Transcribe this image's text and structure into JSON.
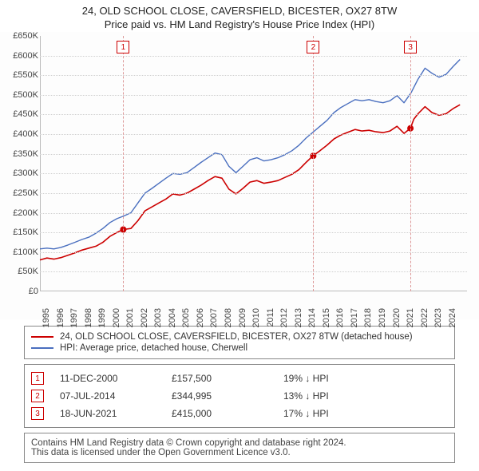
{
  "title_line1": "24, OLD SCHOOL CLOSE, CAVERSFIELD, BICESTER, OX27 8TW",
  "title_line2": "Price paid vs. HM Land Registry's House Price Index (HPI)",
  "chart": {
    "type": "line",
    "x_years": [
      1995,
      1996,
      1997,
      1998,
      1999,
      2000,
      2001,
      2002,
      2003,
      2004,
      2005,
      2006,
      2007,
      2008,
      2009,
      2010,
      2011,
      2012,
      2013,
      2014,
      2015,
      2016,
      2017,
      2018,
      2019,
      2020,
      2021,
      2022,
      2023,
      2024
    ],
    "x_min_year": 1995,
    "x_max_year": 2025.5,
    "ylim": [
      0,
      650000
    ],
    "ytick_step": 50000,
    "ytick_prefix": "£",
    "ytick_suffix": "K",
    "grid_color": "#cfcfcf",
    "background_color": "#fdfdfd",
    "series": [
      {
        "name": "property",
        "label": "24, OLD SCHOOL CLOSE, CAVERSFIELD, BICESTER, OX27 8TW (detached house)",
        "color": "#cc0000",
        "line_width": 1.6,
        "points": [
          [
            1995.0,
            80000
          ],
          [
            1995.5,
            85000
          ],
          [
            1996.0,
            82000
          ],
          [
            1996.5,
            86000
          ],
          [
            1997.0,
            92000
          ],
          [
            1997.5,
            98000
          ],
          [
            1998.0,
            105000
          ],
          [
            1998.5,
            110000
          ],
          [
            1999.0,
            115000
          ],
          [
            1999.5,
            125000
          ],
          [
            2000.0,
            140000
          ],
          [
            2000.5,
            150000
          ],
          [
            2000.95,
            157500
          ],
          [
            2001.5,
            160000
          ],
          [
            2002.0,
            180000
          ],
          [
            2002.5,
            205000
          ],
          [
            2003.0,
            215000
          ],
          [
            2003.5,
            225000
          ],
          [
            2004.0,
            235000
          ],
          [
            2004.5,
            248000
          ],
          [
            2005.0,
            245000
          ],
          [
            2005.5,
            250000
          ],
          [
            2006.0,
            260000
          ],
          [
            2006.5,
            270000
          ],
          [
            2007.0,
            282000
          ],
          [
            2007.5,
            292000
          ],
          [
            2008.0,
            288000
          ],
          [
            2008.5,
            260000
          ],
          [
            2009.0,
            248000
          ],
          [
            2009.5,
            262000
          ],
          [
            2010.0,
            278000
          ],
          [
            2010.5,
            282000
          ],
          [
            2011.0,
            275000
          ],
          [
            2011.5,
            278000
          ],
          [
            2012.0,
            282000
          ],
          [
            2012.5,
            290000
          ],
          [
            2013.0,
            298000
          ],
          [
            2013.5,
            310000
          ],
          [
            2014.0,
            328000
          ],
          [
            2014.5,
            344995
          ],
          [
            2015.0,
            358000
          ],
          [
            2015.5,
            372000
          ],
          [
            2016.0,
            388000
          ],
          [
            2016.5,
            398000
          ],
          [
            2017.0,
            405000
          ],
          [
            2017.5,
            412000
          ],
          [
            2018.0,
            408000
          ],
          [
            2018.5,
            410000
          ],
          [
            2019.0,
            406000
          ],
          [
            2019.5,
            404000
          ],
          [
            2020.0,
            408000
          ],
          [
            2020.5,
            420000
          ],
          [
            2021.0,
            402000
          ],
          [
            2021.46,
            415000
          ],
          [
            2021.7,
            438000
          ],
          [
            2022.0,
            452000
          ],
          [
            2022.5,
            470000
          ],
          [
            2023.0,
            455000
          ],
          [
            2023.5,
            448000
          ],
          [
            2024.0,
            452000
          ],
          [
            2024.5,
            465000
          ],
          [
            2025.0,
            475000
          ]
        ]
      },
      {
        "name": "hpi",
        "label": "HPI: Average price, detached house, Cherwell",
        "color": "#4a6fbf",
        "line_width": 1.4,
        "points": [
          [
            1995.0,
            108000
          ],
          [
            1995.5,
            110000
          ],
          [
            1996.0,
            108000
          ],
          [
            1996.5,
            112000
          ],
          [
            1997.0,
            118000
          ],
          [
            1997.5,
            125000
          ],
          [
            1998.0,
            132000
          ],
          [
            1998.5,
            138000
          ],
          [
            1999.0,
            148000
          ],
          [
            1999.5,
            160000
          ],
          [
            2000.0,
            175000
          ],
          [
            2000.5,
            185000
          ],
          [
            2001.0,
            192000
          ],
          [
            2001.5,
            200000
          ],
          [
            2002.0,
            225000
          ],
          [
            2002.5,
            250000
          ],
          [
            2003.0,
            262000
          ],
          [
            2003.5,
            275000
          ],
          [
            2004.0,
            288000
          ],
          [
            2004.5,
            300000
          ],
          [
            2005.0,
            298000
          ],
          [
            2005.5,
            302000
          ],
          [
            2006.0,
            315000
          ],
          [
            2006.5,
            328000
          ],
          [
            2007.0,
            340000
          ],
          [
            2007.5,
            352000
          ],
          [
            2008.0,
            348000
          ],
          [
            2008.5,
            318000
          ],
          [
            2009.0,
            302000
          ],
          [
            2009.5,
            318000
          ],
          [
            2010.0,
            335000
          ],
          [
            2010.5,
            340000
          ],
          [
            2011.0,
            332000
          ],
          [
            2011.5,
            335000
          ],
          [
            2012.0,
            340000
          ],
          [
            2012.5,
            348000
          ],
          [
            2013.0,
            358000
          ],
          [
            2013.5,
            372000
          ],
          [
            2014.0,
            390000
          ],
          [
            2014.5,
            405000
          ],
          [
            2015.0,
            420000
          ],
          [
            2015.5,
            435000
          ],
          [
            2016.0,
            455000
          ],
          [
            2016.5,
            468000
          ],
          [
            2017.0,
            478000
          ],
          [
            2017.5,
            488000
          ],
          [
            2018.0,
            485000
          ],
          [
            2018.5,
            488000
          ],
          [
            2019.0,
            483000
          ],
          [
            2019.5,
            480000
          ],
          [
            2020.0,
            485000
          ],
          [
            2020.5,
            498000
          ],
          [
            2021.0,
            480000
          ],
          [
            2021.5,
            505000
          ],
          [
            2022.0,
            540000
          ],
          [
            2022.5,
            568000
          ],
          [
            2023.0,
            555000
          ],
          [
            2023.5,
            545000
          ],
          [
            2024.0,
            552000
          ],
          [
            2024.5,
            572000
          ],
          [
            2025.0,
            590000
          ]
        ]
      }
    ],
    "sales": [
      {
        "n": "1",
        "year": 2000.95,
        "y": 157500,
        "date": "11-DEC-2000",
        "price": "£157,500",
        "diff": "19% ↓ HPI"
      },
      {
        "n": "2",
        "year": 2014.52,
        "y": 344995,
        "date": "07-JUL-2014",
        "price": "£344,995",
        "diff": "13% ↓ HPI"
      },
      {
        "n": "3",
        "year": 2021.46,
        "y": 415000,
        "date": "18-JUN-2021",
        "price": "£415,000",
        "diff": "17% ↓ HPI"
      }
    ],
    "sale_marker_color": "#cc0000",
    "sale_line_color": "#d99"
  },
  "footnote_line1": "Contains HM Land Registry data © Crown copyright and database right 2024.",
  "footnote_line2": "This data is licensed under the Open Government Licence v3.0."
}
